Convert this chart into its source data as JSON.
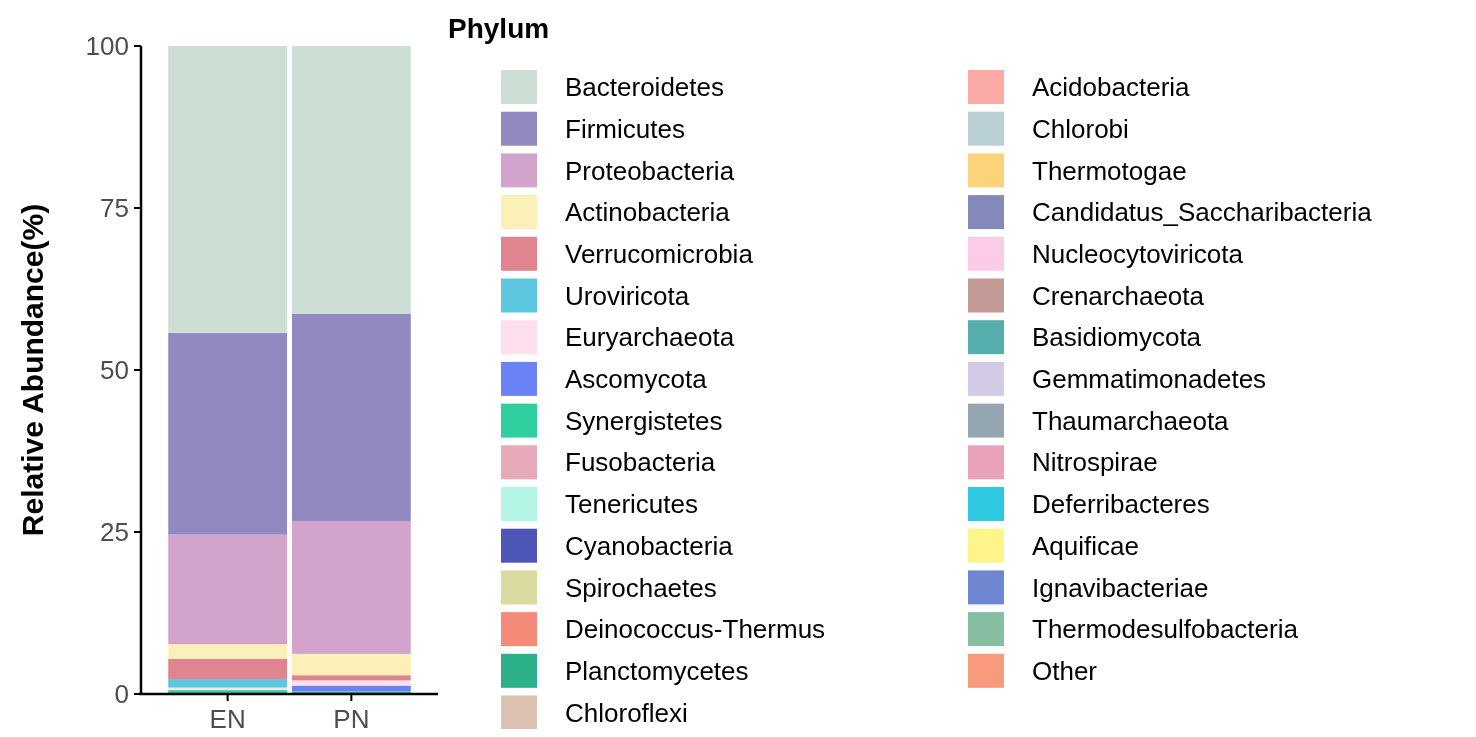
{
  "chart_data": {
    "type": "bar",
    "stacked": true,
    "ylabel": "Relative Abundance(%)",
    "legend_title": "Phylum",
    "legend": "right",
    "categories": [
      "EN",
      "PN"
    ],
    "ylim": [
      0,
      100
    ],
    "yticks": [
      0,
      25,
      50,
      75,
      100
    ],
    "grid": false,
    "series": [
      {
        "name": "Other",
        "color": "#f89a7c",
        "values": [
          null,
          null
        ]
      },
      {
        "name": "Thermodesulfobacteria",
        "color": "#86bea2",
        "values": [
          0,
          0
        ]
      },
      {
        "name": "Ignavibacteriae",
        "color": "#6f86d1",
        "values": [
          0,
          0
        ]
      },
      {
        "name": "Aquificae",
        "color": "#fdf48a",
        "values": [
          0,
          0
        ]
      },
      {
        "name": "Deferribacteres",
        "color": "#2fc8e3",
        "values": [
          0,
          0
        ]
      },
      {
        "name": "Nitrospirae",
        "color": "#e8a3b8",
        "values": [
          0,
          0
        ]
      },
      {
        "name": "Thaumarchaeota",
        "color": "#95a6b3",
        "values": [
          0,
          0
        ]
      },
      {
        "name": "Gemmatimonadetes",
        "color": "#d3cbe6",
        "values": [
          0,
          0
        ]
      },
      {
        "name": "Basidiomycota",
        "color": "#55aeaa",
        "values": [
          0,
          0
        ]
      },
      {
        "name": "Crenarchaeota",
        "color": "#c49a96",
        "values": [
          0,
          0
        ]
      },
      {
        "name": "Nucleocytoviricota",
        "color": "#fbcbe8",
        "values": [
          0,
          0
        ]
      },
      {
        "name": "Candidatus_Saccharibacteria",
        "color": "#8489bb",
        "values": [
          0,
          0
        ]
      },
      {
        "name": "Thermotogae",
        "color": "#fbd37a",
        "values": [
          0,
          0
        ]
      },
      {
        "name": "Chlorobi",
        "color": "#b8cfd6",
        "values": [
          0,
          0
        ]
      },
      {
        "name": "Acidobacteria",
        "color": "#fbaaa6",
        "values": [
          0,
          0
        ]
      },
      {
        "name": "Chloroflexi",
        "color": "#dcc0b2",
        "values": [
          0,
          0
        ]
      },
      {
        "name": "Planctomycetes",
        "color": "#2bb08a",
        "values": [
          0,
          0
        ]
      },
      {
        "name": "Deinococcus-Thermus",
        "color": "#f58a78",
        "values": [
          0,
          0
        ]
      },
      {
        "name": "Spirochaetes",
        "color": "#d9dba0",
        "values": [
          0,
          0
        ]
      },
      {
        "name": "Cyanobacteria",
        "color": "#4d55b5",
        "values": [
          0,
          0
        ]
      },
      {
        "name": "Tenericutes",
        "color": "#b5f5e6",
        "values": [
          null,
          0
        ]
      },
      {
        "name": "Fusobacteria",
        "color": "#e6aab8",
        "values": [
          0,
          0
        ]
      },
      {
        "name": "Synergistetes",
        "color": "#2fcf9f",
        "values": [
          0.6,
          0.4
        ]
      },
      {
        "name": "Ascomycota",
        "color": "#6a82f5",
        "values": [
          0,
          0.9
        ]
      },
      {
        "name": "Euryarchaeota",
        "color": "#fde0ec",
        "values": [
          0.4,
          0.8
        ]
      },
      {
        "name": "Uroviricota",
        "color": "#5bc6dd",
        "values": [
          1.3,
          null
        ]
      },
      {
        "name": "Verrucomicrobia",
        "color": "#e0848f",
        "values": [
          3.1,
          0.8
        ]
      },
      {
        "name": "Actinobacteria",
        "color": "#fbf0b8",
        "values": [
          2.3,
          3.3
        ]
      },
      {
        "name": "Proteobacteria",
        "color": "#d3a4cb",
        "values": [
          16.9,
          20.5
        ]
      },
      {
        "name": "Firmicutes",
        "color": "#9189c0",
        "values": [
          31.1,
          32.0
        ]
      },
      {
        "name": "Bacteroidetes",
        "color": "#cddfd5",
        "values": [
          44.3,
          41.3
        ]
      }
    ]
  }
}
